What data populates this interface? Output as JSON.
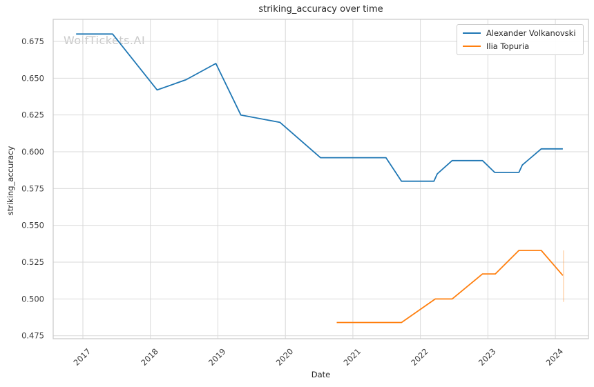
{
  "chart_data": {
    "type": "line",
    "title": "striking_accuracy over time",
    "xlabel": "Date",
    "ylabel": "striking_accuracy",
    "watermark": "WolfTickets.AI",
    "grid": true,
    "legend_position": "upper right",
    "xlim": [
      2016.56,
      2024.49
    ],
    "ylim": [
      0.473,
      0.69
    ],
    "x_ticks": [
      2017,
      2018,
      2019,
      2020,
      2021,
      2022,
      2023,
      2024
    ],
    "y_ticks": [
      0.475,
      0.5,
      0.525,
      0.55,
      0.575,
      0.6,
      0.625,
      0.65,
      0.675
    ],
    "series": [
      {
        "name": "Alexander Volkanovski",
        "color": "#1f77b4",
        "points": [
          [
            2016.9,
            0.68
          ],
          [
            2017.44,
            0.68
          ],
          [
            2018.1,
            0.642
          ],
          [
            2018.53,
            0.649
          ],
          [
            2018.97,
            0.66
          ],
          [
            2019.34,
            0.625
          ],
          [
            2019.92,
            0.62
          ],
          [
            2020.52,
            0.596
          ],
          [
            2021.49,
            0.596
          ],
          [
            2021.72,
            0.58
          ],
          [
            2022.2,
            0.58
          ],
          [
            2022.25,
            0.585
          ],
          [
            2022.47,
            0.594
          ],
          [
            2022.92,
            0.594
          ],
          [
            2023.1,
            0.586
          ],
          [
            2023.46,
            0.586
          ],
          [
            2023.51,
            0.591
          ],
          [
            2023.79,
            0.602
          ],
          [
            2024.11,
            0.602
          ]
        ]
      },
      {
        "name": "Ilia Topuria",
        "color": "#ff7f0e",
        "points": [
          [
            2020.76,
            0.484
          ],
          [
            2021.72,
            0.484
          ],
          [
            2022.22,
            0.5
          ],
          [
            2022.47,
            0.5
          ],
          [
            2022.92,
            0.517
          ],
          [
            2023.11,
            0.517
          ],
          [
            2023.46,
            0.533
          ],
          [
            2023.79,
            0.533
          ],
          [
            2024.11,
            0.516
          ]
        ],
        "error_bar": {
          "x": 2024.12,
          "low": 0.498,
          "high": 0.533
        }
      }
    ]
  },
  "colors": {
    "grid": "#d9d9d9",
    "spine": "#c9c9c9",
    "tick_text": "#3b3b3b",
    "text": "#262626",
    "watermark": "#c9c9c9"
  }
}
